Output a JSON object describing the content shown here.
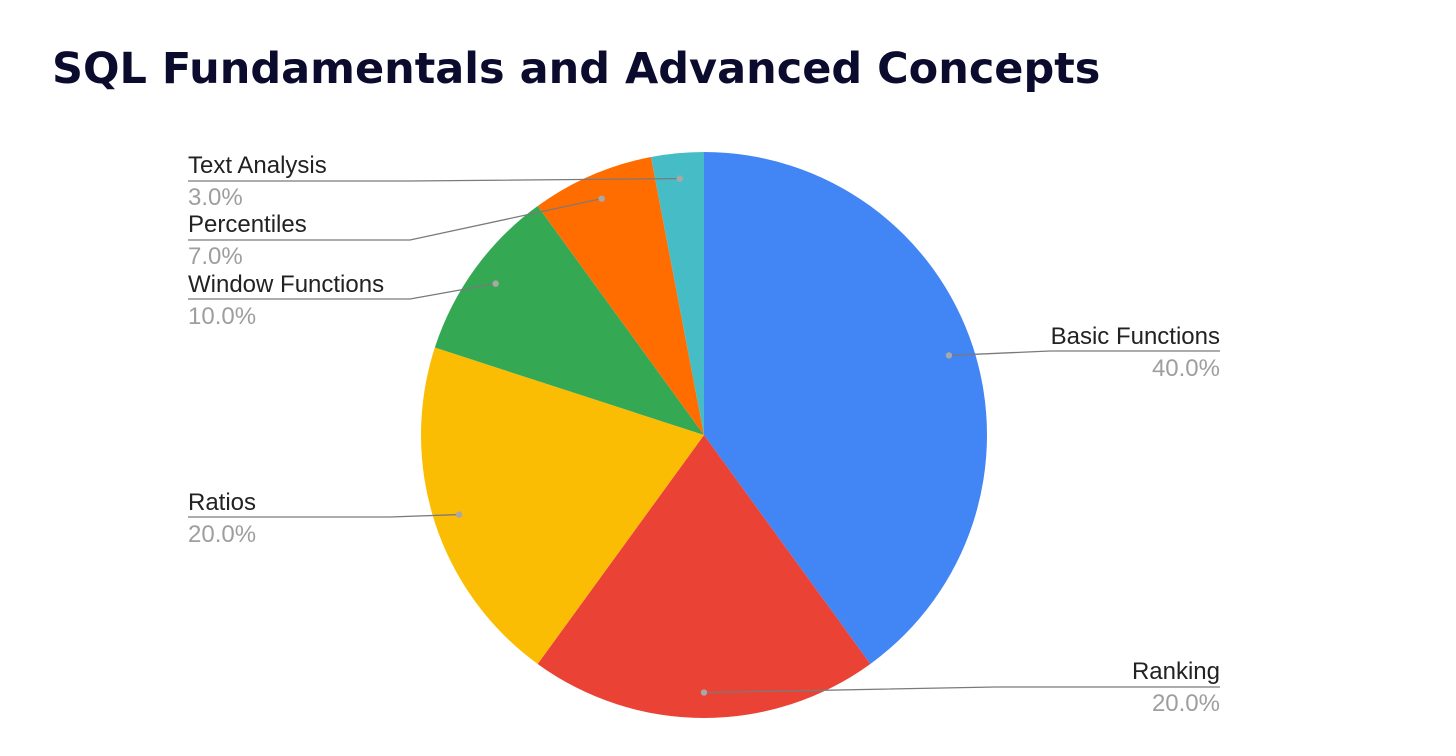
{
  "title": "SQL Fundamentals and Advanced Concepts",
  "chart_data": {
    "type": "pie",
    "title": "",
    "categories": [
      "Basic Functions",
      "Ranking",
      "Ratios",
      "Window Functions",
      "Percentiles",
      "Text Analysis"
    ],
    "values": [
      40.0,
      20.0,
      20.0,
      10.0,
      7.0,
      3.0
    ],
    "value_labels": [
      "40.0%",
      "20.0%",
      "20.0%",
      "10.0%",
      "7.0%",
      "3.0%"
    ],
    "colors": [
      "#4285f4",
      "#ea4335",
      "#fbbc04",
      "#34a853",
      "#ff6d01",
      "#46bdc6"
    ],
    "start_angle": "12 o'clock",
    "direction": "clockwise",
    "legend": "none",
    "labels": "outside with leader lines"
  }
}
